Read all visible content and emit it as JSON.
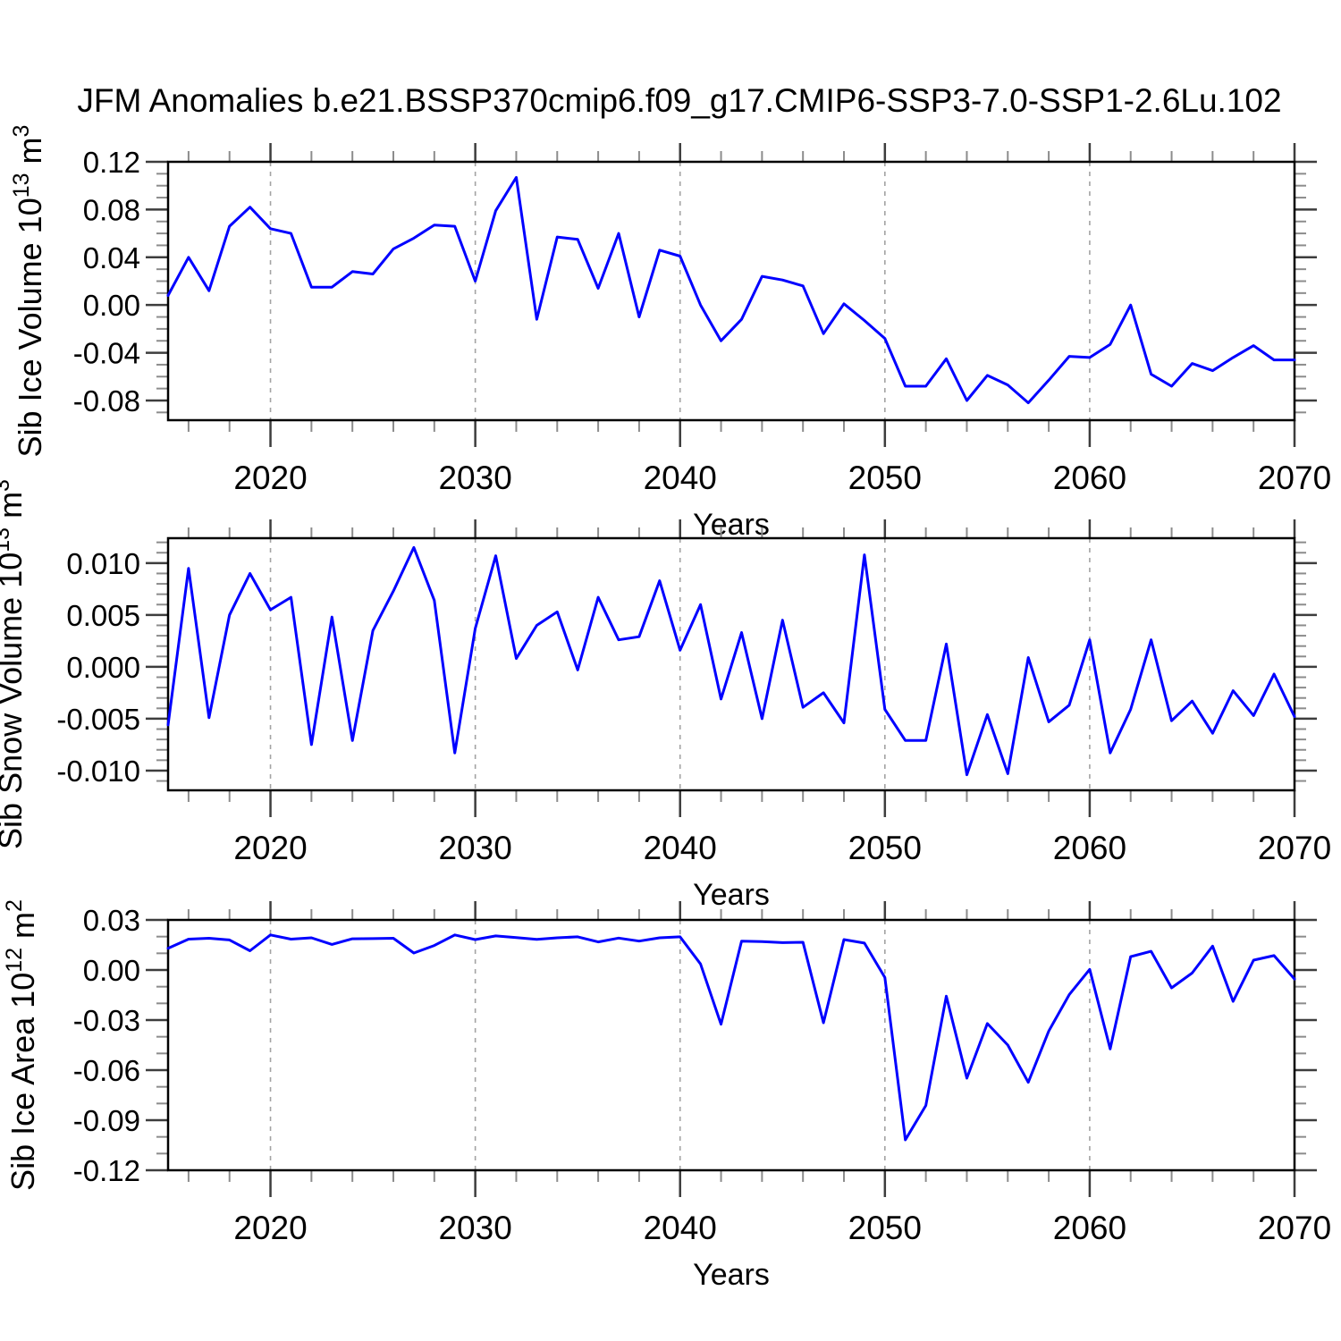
{
  "title": "JFM Anomalies b.e21.BSSP370cmip6.f09_g17.CMIP6-SSP3-7.0-SSP1-2.6Lu.102",
  "colors": {
    "line": "#0000ff",
    "axis": "#000000",
    "major_tick": "#3d3d3d",
    "minor_tick": "#8c8c8c",
    "grid": "#a3a3a3",
    "text": "#000000",
    "background": "#ffffff"
  },
  "x_axis": {
    "start": 2015,
    "end": 2070,
    "label": "Years",
    "minor_step": 2,
    "major_ticks": [
      {
        "v": 2020,
        "label": "2020"
      },
      {
        "v": 2030,
        "label": "2030"
      },
      {
        "v": 2040,
        "label": "2040"
      },
      {
        "v": 2050,
        "label": "2050"
      },
      {
        "v": 2060,
        "label": "2060"
      },
      {
        "v": 2070,
        "label": "2070"
      }
    ],
    "grid_years": [
      2020,
      2030,
      2040,
      2050,
      2060
    ]
  },
  "chart_data": [
    {
      "type": "line",
      "name": "sib-ice-volume",
      "ylabel_parts": [
        {
          "t": "Sib Ice Volume 10"
        },
        {
          "sup": "13"
        },
        {
          "t": " m"
        },
        {
          "sup": "3"
        }
      ],
      "ylim": [
        -0.0965,
        0.12
      ],
      "y_minor_step": 0.01,
      "y_ticks": [
        {
          "v": 0.12,
          "label": "0.12"
        },
        {
          "v": 0.08,
          "label": "0.08"
        },
        {
          "v": 0.04,
          "label": "0.04"
        },
        {
          "v": 0.0,
          "label": "0.00"
        },
        {
          "v": -0.04,
          "label": "-0.04"
        },
        {
          "v": -0.08,
          "label": "-0.08"
        }
      ],
      "x_start_year": 2015,
      "values": [
        0.008,
        0.04,
        0.012,
        0.066,
        0.082,
        0.064,
        0.06,
        0.015,
        0.015,
        0.028,
        0.026,
        0.047,
        0.056,
        0.067,
        0.066,
        0.02,
        0.079,
        0.107,
        -0.012,
        0.057,
        0.055,
        0.014,
        0.06,
        -0.01,
        0.046,
        0.041,
        0.0,
        -0.03,
        -0.012,
        0.024,
        0.021,
        0.016,
        -0.024,
        0.001,
        -0.013,
        -0.028,
        -0.068,
        -0.068,
        -0.045,
        -0.08,
        -0.059,
        -0.067,
        -0.082,
        -0.063,
        -0.043,
        -0.044,
        -0.033,
        0.0,
        -0.058,
        -0.068,
        -0.049,
        -0.055,
        -0.044,
        -0.034,
        -0.046,
        -0.046
      ]
    },
    {
      "type": "line",
      "name": "sib-snow-volume",
      "ylabel_parts": [
        {
          "t": "Sib Snow Volume 10"
        },
        {
          "sup": "13"
        },
        {
          "t": " m"
        },
        {
          "sup": "3"
        }
      ],
      "ylim": [
        -0.0119,
        0.0124
      ],
      "y_minor_step": 0.001,
      "y_ticks": [
        {
          "v": 0.01,
          "label": "0.010"
        },
        {
          "v": 0.005,
          "label": "0.005"
        },
        {
          "v": 0.0,
          "label": "0.000"
        },
        {
          "v": -0.005,
          "label": "-0.005"
        },
        {
          "v": -0.01,
          "label": "-0.010"
        }
      ],
      "x_start_year": 2015,
      "values": [
        -0.0056,
        0.0095,
        -0.0049,
        0.005,
        0.009,
        0.0055,
        0.0067,
        -0.0075,
        0.0048,
        -0.0071,
        0.0035,
        0.0073,
        0.0115,
        0.0064,
        -0.0083,
        0.0037,
        0.0107,
        0.0008,
        0.004,
        0.0053,
        -0.0003,
        0.0067,
        0.0026,
        0.0029,
        0.0083,
        0.0016,
        0.006,
        -0.0031,
        0.0033,
        -0.005,
        0.0045,
        -0.0039,
        -0.0025,
        -0.0054,
        0.0108,
        -0.0041,
        -0.0071,
        -0.0071,
        0.0022,
        -0.0104,
        -0.0046,
        -0.0103,
        0.0009,
        -0.0053,
        -0.0037,
        0.0026,
        -0.0083,
        -0.0041,
        0.0026,
        -0.0052,
        -0.0033,
        -0.0064,
        -0.0023,
        -0.0047,
        -0.0007,
        -0.0048
      ]
    },
    {
      "type": "line",
      "name": "sib-ice-area",
      "ylabel_parts": [
        {
          "t": "Sib Ice Area 10"
        },
        {
          "sup": "12"
        },
        {
          "t": " m"
        },
        {
          "sup": "2"
        }
      ],
      "ylim": [
        -0.12,
        0.03
      ],
      "y_minor_step": 0.01,
      "y_ticks": [
        {
          "v": 0.03,
          "label": "0.03"
        },
        {
          "v": 0.0,
          "label": "0.00"
        },
        {
          "v": -0.03,
          "label": "-0.03"
        },
        {
          "v": -0.06,
          "label": "-0.06"
        },
        {
          "v": -0.09,
          "label": "-0.09"
        },
        {
          "v": -0.12,
          "label": "-0.12"
        }
      ],
      "x_start_year": 2015,
      "values": [
        0.013,
        0.0185,
        0.019,
        0.018,
        0.0115,
        0.021,
        0.0185,
        0.0193,
        0.0153,
        0.0187,
        0.0188,
        0.019,
        0.0102,
        0.0147,
        0.021,
        0.0182,
        0.0204,
        0.0194,
        0.0184,
        0.0193,
        0.0199,
        0.0168,
        0.0191,
        0.0173,
        0.0193,
        0.0199,
        0.0036,
        -0.0325,
        0.0173,
        0.017,
        0.0164,
        0.0166,
        -0.0316,
        0.0182,
        0.0161,
        -0.0045,
        -0.1018,
        -0.0812,
        -0.0157,
        -0.0648,
        -0.0321,
        -0.045,
        -0.0673,
        -0.0366,
        -0.0148,
        0.0004,
        -0.0473,
        0.008,
        0.0112,
        -0.0107,
        -0.0018,
        0.0143,
        -0.0188,
        0.0059,
        0.0086,
        -0.0054
      ]
    }
  ]
}
